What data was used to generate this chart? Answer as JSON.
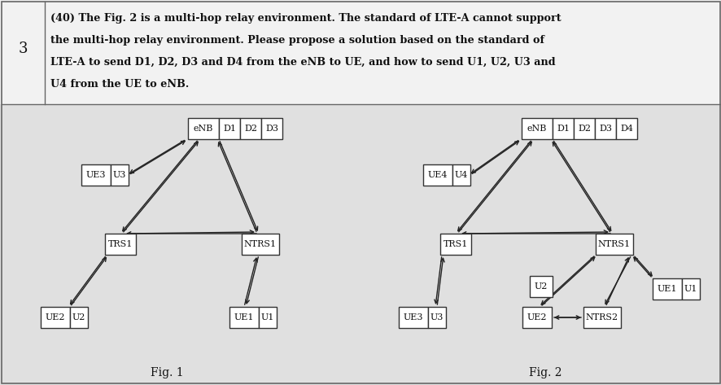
{
  "bg_top": "#f5f5f5",
  "bg_diag": "#e8e8e8",
  "box_color": "#ffffff",
  "box_edge": "#222222",
  "text_color": "#111111",
  "row_number": "3",
  "header_line1": "(40) The Fig. 2 is a multi-hop relay environment. The standard of LTE-A cannot support",
  "header_line2": "the multi-hop relay environment. Please propose a solution based on the standard of",
  "header_line3": "LTE-A to send D1, D2, D3 and D4 from the eNB to UE, and how to send U1, U2, U3 and",
  "header_line4": "U4 from the UE to eNB.",
  "fig1_label": "Fig. 1",
  "fig2_label": "Fig. 2"
}
